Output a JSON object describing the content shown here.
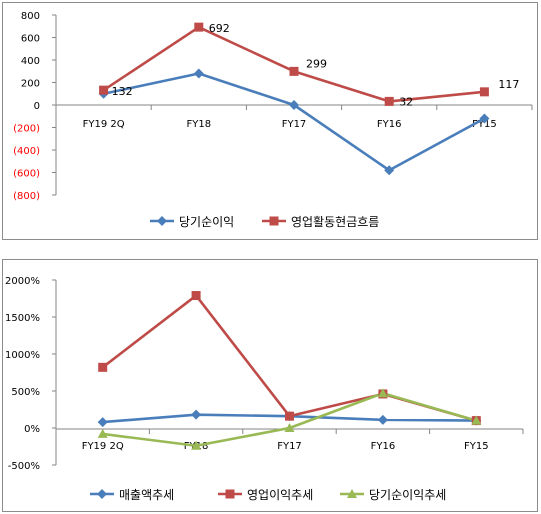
{
  "chart_data": [
    {
      "type": "line",
      "categories": [
        "FY19 2Q",
        "FY18",
        "FY17",
        "FY16",
        "FY15"
      ],
      "ylim": [
        -800,
        800
      ],
      "yticks": [
        "800",
        "600",
        "400",
        "200",
        "0",
        "(200)",
        "(400)",
        "(600)",
        "(800)"
      ],
      "negative_tick_color": "#ff0000",
      "series": [
        {
          "name": "당기순이익",
          "values": [
            100,
            280,
            0,
            -580,
            -120
          ],
          "color": "#4a7ebb",
          "marker": "diamond"
        },
        {
          "name": "영업활동현금흐름",
          "values": [
            132,
            692,
            299,
            32,
            117
          ],
          "color": "#be4b48",
          "marker": "square",
          "labels": [
            "132",
            "692",
            "299",
            "32",
            "117"
          ]
        }
      ],
      "legend_position": "bottom"
    },
    {
      "type": "line",
      "categories": [
        "FY19 2Q",
        "FY18",
        "FY17",
        "FY16",
        "FY15"
      ],
      "ylim": [
        -500,
        2000
      ],
      "yticks": [
        "2000%",
        "1500%",
        "1000%",
        "500%",
        "0%",
        "-500%"
      ],
      "series": [
        {
          "name": "매출액추세",
          "values": [
            80,
            180,
            160,
            110,
            100
          ],
          "color": "#4a7ebb",
          "marker": "diamond"
        },
        {
          "name": "영업이익추세",
          "values": [
            820,
            1790,
            160,
            460,
            100
          ],
          "color": "#be4b48",
          "marker": "square"
        },
        {
          "name": "당기순이익추세",
          "values": [
            -80,
            -240,
            0,
            470,
            100
          ],
          "color": "#98b954",
          "marker": "triangle"
        }
      ],
      "legend_position": "bottom"
    }
  ]
}
